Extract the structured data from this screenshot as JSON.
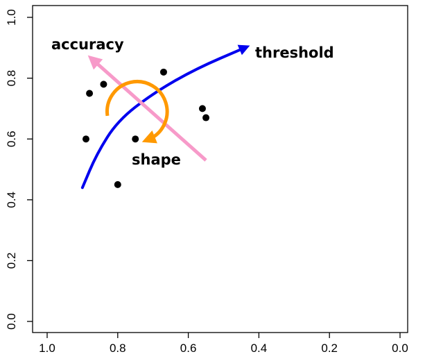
{
  "chart_data": {
    "type": "scatter",
    "title": "",
    "xlabel": "",
    "ylabel": "",
    "xlim": [
      1.0,
      0.0
    ],
    "ylim": [
      0.0,
      1.0
    ],
    "x_reversed": true,
    "grid": false,
    "x_ticks": [
      "1.0",
      "0.8",
      "0.6",
      "0.4",
      "0.2",
      "0.0"
    ],
    "x_tick_values": [
      1.0,
      0.8,
      0.6,
      0.4,
      0.2,
      0.0
    ],
    "y_ticks": [
      "0.0",
      "0.2",
      "0.4",
      "0.6",
      "0.8",
      "1.0"
    ],
    "y_tick_values": [
      0.0,
      0.2,
      0.4,
      0.6,
      0.8,
      1.0
    ],
    "points": [
      {
        "x": 0.88,
        "y": 0.75
      },
      {
        "x": 0.84,
        "y": 0.78
      },
      {
        "x": 0.67,
        "y": 0.82
      },
      {
        "x": 0.56,
        "y": 0.7
      },
      {
        "x": 0.55,
        "y": 0.67
      },
      {
        "x": 0.89,
        "y": 0.6
      },
      {
        "x": 0.75,
        "y": 0.6
      },
      {
        "x": 0.8,
        "y": 0.45
      }
    ],
    "point_color": "#000000",
    "annotations": {
      "threshold": {
        "label": "threshold",
        "color": "#0000ee",
        "path": [
          [
            0.9,
            0.44
          ],
          [
            0.86,
            0.55
          ],
          [
            0.8,
            0.66
          ],
          [
            0.7,
            0.75
          ],
          [
            0.58,
            0.83
          ],
          [
            0.44,
            0.9
          ]
        ]
      },
      "accuracy": {
        "label": "accuracy",
        "color": "#f79ac9",
        "from": [
          0.55,
          0.53
        ],
        "to": [
          0.87,
          0.86
        ]
      },
      "shape": {
        "label": "shape",
        "color": "#ff9900",
        "center": [
          0.745,
          0.69
        ],
        "radius_x": 0.085,
        "radius_y": 0.085
      }
    }
  }
}
